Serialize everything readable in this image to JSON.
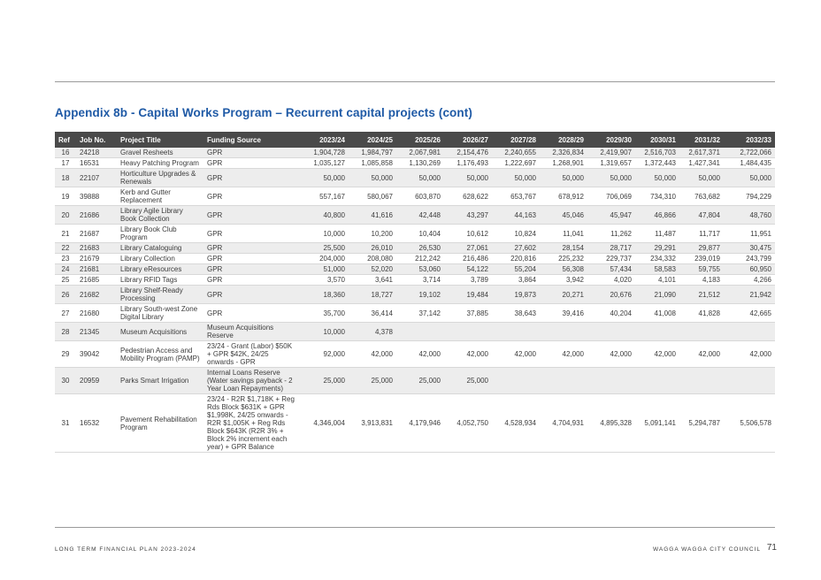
{
  "title": "Appendix 8b - Capital Works Program – Recurrent capital projects (cont)",
  "table": {
    "headers": [
      "Ref",
      "Job No.",
      "Project Title",
      "Funding Source",
      "2023/24",
      "2024/25",
      "2025/26",
      "2026/27",
      "2027/28",
      "2028/29",
      "2029/30",
      "2030/31",
      "2031/32",
      "2032/33"
    ],
    "rows": [
      [
        "16",
        "24218",
        "Gravel Resheets",
        "GPR",
        "1,904,728",
        "1,984,797",
        "2,067,981",
        "2,154,476",
        "2,240,655",
        "2,326,834",
        "2,419,907",
        "2,516,703",
        "2,617,371",
        "2,722,066"
      ],
      [
        "17",
        "16531",
        "Heavy Patching Program",
        "GPR",
        "1,035,127",
        "1,085,858",
        "1,130,269",
        "1,176,493",
        "1,222,697",
        "1,268,901",
        "1,319,657",
        "1,372,443",
        "1,427,341",
        "1,484,435"
      ],
      [
        "18",
        "22107",
        "Horticulture Upgrades & Renewals",
        "GPR",
        "50,000",
        "50,000",
        "50,000",
        "50,000",
        "50,000",
        "50,000",
        "50,000",
        "50,000",
        "50,000",
        "50,000"
      ],
      [
        "19",
        "39888",
        "Kerb and Gutter Replacement",
        "GPR",
        "557,167",
        "580,067",
        "603,870",
        "628,622",
        "653,767",
        "678,912",
        "706,069",
        "734,310",
        "763,682",
        "794,229"
      ],
      [
        "20",
        "21686",
        "Library Agile Library Book Collection",
        "GPR",
        "40,800",
        "41,616",
        "42,448",
        "43,297",
        "44,163",
        "45,046",
        "45,947",
        "46,866",
        "47,804",
        "48,760"
      ],
      [
        "21",
        "21687",
        "Library Book Club Program",
        "GPR",
        "10,000",
        "10,200",
        "10,404",
        "10,612",
        "10,824",
        "11,041",
        "11,262",
        "11,487",
        "11,717",
        "11,951"
      ],
      [
        "22",
        "21683",
        "Library Cataloguing",
        "GPR",
        "25,500",
        "26,010",
        "26,530",
        "27,061",
        "27,602",
        "28,154",
        "28,717",
        "29,291",
        "29,877",
        "30,475"
      ],
      [
        "23",
        "21679",
        "Library Collection",
        "GPR",
        "204,000",
        "208,080",
        "212,242",
        "216,486",
        "220,816",
        "225,232",
        "229,737",
        "234,332",
        "239,019",
        "243,799"
      ],
      [
        "24",
        "21681",
        "Library eResources",
        "GPR",
        "51,000",
        "52,020",
        "53,060",
        "54,122",
        "55,204",
        "56,308",
        "57,434",
        "58,583",
        "59,755",
        "60,950"
      ],
      [
        "25",
        "21685",
        "Library RFID Tags",
        "GPR",
        "3,570",
        "3,641",
        "3,714",
        "3,789",
        "3,864",
        "3,942",
        "4,020",
        "4,101",
        "4,183",
        "4,266"
      ],
      [
        "26",
        "21682",
        "Library Shelf-Ready Processing",
        "GPR",
        "18,360",
        "18,727",
        "19,102",
        "19,484",
        "19,873",
        "20,271",
        "20,676",
        "21,090",
        "21,512",
        "21,942"
      ],
      [
        "27",
        "21680",
        "Library South-west Zone Digital Library",
        "GPR",
        "35,700",
        "36,414",
        "37,142",
        "37,885",
        "38,643",
        "39,416",
        "40,204",
        "41,008",
        "41,828",
        "42,665"
      ],
      [
        "28",
        "21345",
        "Museum Acquisitions",
        "Museum Acquisitions Reserve",
        "10,000",
        "4,378",
        "",
        "",
        "",
        "",
        "",
        "",
        "",
        ""
      ],
      [
        "29",
        "39042",
        "Pedestrian Access and Mobility Program (PAMP)",
        "23/24 - Grant (Labor) $50K + GPR $42K, 24/25 onwards - GPR",
        "92,000",
        "42,000",
        "42,000",
        "42,000",
        "42,000",
        "42,000",
        "42,000",
        "42,000",
        "42,000",
        "42,000"
      ],
      [
        "30",
        "20959",
        "Parks Smart Irrigation",
        "Internal Loans Reserve (Water savings payback - 2 Year Loan Repayments)",
        "25,000",
        "25,000",
        "25,000",
        "25,000",
        "",
        "",
        "",
        "",
        "",
        ""
      ],
      [
        "31",
        "16532",
        "Pavement Rehabilitation Program",
        "23/24 - R2R $1,718K + Reg Rds Block $631K + GPR $1,998K, 24/25 onwards - R2R $1,005K + Reg Rds Block $643K (R2R 3% + Block 2% increment each year) + GPR Balance",
        "4,346,004",
        "3,913,831",
        "4,179,946",
        "4,052,750",
        "4,528,934",
        "4,704,931",
        "4,895,328",
        "5,091,141",
        "5,294,787",
        "5,506,578"
      ]
    ]
  },
  "footer": {
    "left": "LONG TERM FINANCIAL PLAN 2023-2024",
    "right": "WAGGA WAGGA CITY COUNCIL",
    "page_number": "71"
  }
}
